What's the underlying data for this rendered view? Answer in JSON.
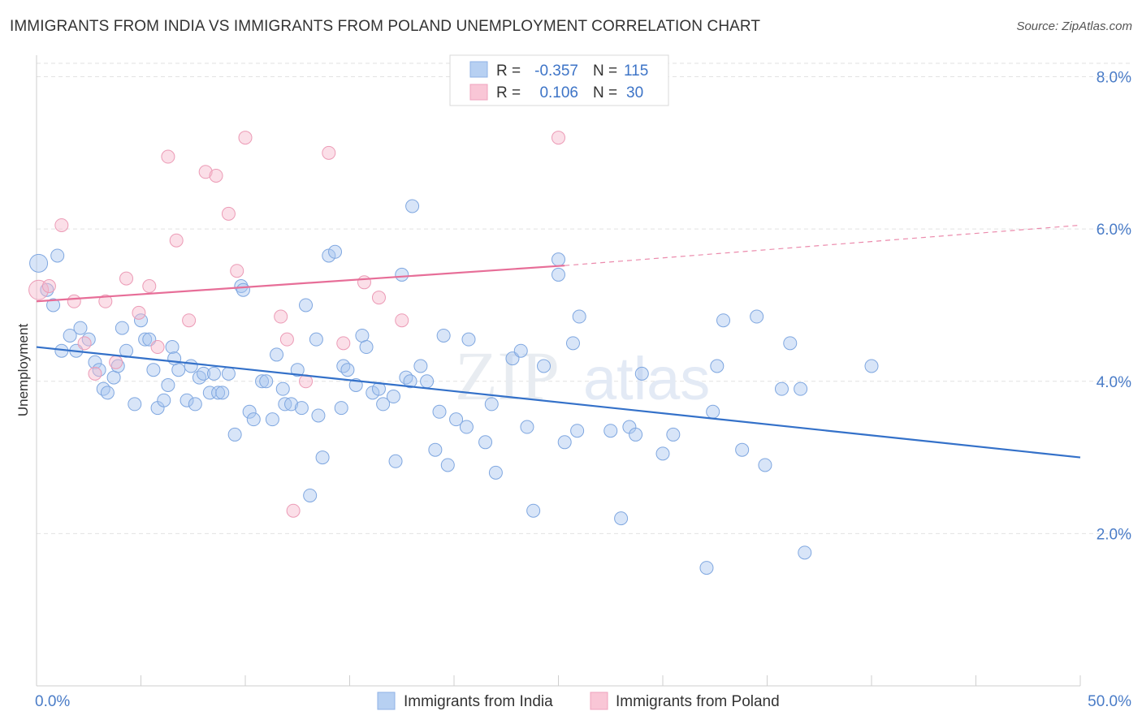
{
  "title": "IMMIGRANTS FROM INDIA VS IMMIGRANTS FROM POLAND UNEMPLOYMENT CORRELATION CHART",
  "source": "Source: ZipAtlas.com",
  "watermark": {
    "zip": "ZIP",
    "atlas": "atlas"
  },
  "legend": {
    "r_label": "R =",
    "n_label": "N =",
    "rows": [
      {
        "r": "-0.357",
        "n": "115"
      },
      {
        "r": "0.106",
        "n": "30"
      }
    ]
  },
  "chart_data": {
    "type": "scatter",
    "ylabel": "Unemployment",
    "xlim": [
      0,
      50
    ],
    "ylim": [
      0,
      8.4
    ],
    "x_tick_labels": [
      "0.0%",
      "50.0%"
    ],
    "y_ticks": [
      2,
      4,
      6,
      8
    ],
    "y_tick_labels": [
      "2.0%",
      "4.0%",
      "6.0%",
      "8.0%"
    ],
    "grid": true,
    "legend_position": "top-center",
    "series": [
      {
        "name": "Immigrants from India",
        "color": "#a8c6ef",
        "line_color": "#3471c9",
        "trend": {
          "x": [
            0,
            50
          ],
          "y": [
            4.45,
            3.0
          ]
        },
        "points": [
          [
            0.1,
            5.55
          ],
          [
            1.0,
            5.65
          ],
          [
            0.5,
            5.2
          ],
          [
            0.8,
            5.0
          ],
          [
            1.2,
            4.4
          ],
          [
            1.6,
            4.6
          ],
          [
            1.9,
            4.4
          ],
          [
            2.1,
            4.7
          ],
          [
            2.5,
            4.55
          ],
          [
            2.8,
            4.25
          ],
          [
            3.0,
            4.15
          ],
          [
            3.2,
            3.9
          ],
          [
            3.4,
            3.85
          ],
          [
            3.7,
            4.05
          ],
          [
            3.9,
            4.2
          ],
          [
            4.1,
            4.7
          ],
          [
            4.3,
            4.4
          ],
          [
            4.7,
            3.7
          ],
          [
            5.0,
            4.8
          ],
          [
            5.2,
            4.55
          ],
          [
            5.4,
            4.55
          ],
          [
            5.6,
            4.15
          ],
          [
            5.8,
            3.65
          ],
          [
            6.1,
            3.75
          ],
          [
            6.3,
            3.95
          ],
          [
            6.5,
            4.45
          ],
          [
            6.6,
            4.3
          ],
          [
            6.8,
            4.15
          ],
          [
            7.2,
            3.75
          ],
          [
            7.4,
            4.2
          ],
          [
            7.6,
            3.7
          ],
          [
            7.8,
            4.05
          ],
          [
            8.0,
            4.1
          ],
          [
            8.3,
            3.85
          ],
          [
            8.5,
            4.1
          ],
          [
            8.7,
            3.85
          ],
          [
            8.9,
            3.85
          ],
          [
            9.2,
            4.1
          ],
          [
            9.5,
            3.3
          ],
          [
            9.8,
            5.25
          ],
          [
            9.9,
            5.2
          ],
          [
            10.2,
            3.6
          ],
          [
            10.4,
            3.5
          ],
          [
            10.8,
            4.0
          ],
          [
            11.0,
            4.0
          ],
          [
            11.3,
            3.5
          ],
          [
            11.5,
            4.35
          ],
          [
            11.8,
            3.9
          ],
          [
            11.9,
            3.7
          ],
          [
            12.2,
            3.7
          ],
          [
            12.5,
            4.15
          ],
          [
            12.7,
            3.65
          ],
          [
            12.9,
            5.0
          ],
          [
            13.1,
            2.5
          ],
          [
            13.4,
            4.55
          ],
          [
            13.5,
            3.55
          ],
          [
            13.7,
            3.0
          ],
          [
            14.0,
            5.65
          ],
          [
            14.3,
            5.7
          ],
          [
            14.6,
            3.65
          ],
          [
            14.7,
            4.2
          ],
          [
            14.9,
            4.15
          ],
          [
            15.3,
            3.95
          ],
          [
            15.6,
            4.6
          ],
          [
            15.8,
            4.45
          ],
          [
            16.1,
            3.85
          ],
          [
            16.4,
            3.9
          ],
          [
            16.6,
            3.7
          ],
          [
            17.1,
            3.8
          ],
          [
            17.2,
            2.95
          ],
          [
            17.5,
            5.4
          ],
          [
            17.7,
            4.05
          ],
          [
            17.9,
            4.0
          ],
          [
            18.0,
            6.3
          ],
          [
            18.4,
            4.2
          ],
          [
            18.7,
            4.0
          ],
          [
            19.1,
            3.1
          ],
          [
            19.3,
            3.6
          ],
          [
            19.5,
            4.6
          ],
          [
            19.7,
            2.9
          ],
          [
            20.1,
            3.5
          ],
          [
            20.6,
            3.4
          ],
          [
            20.7,
            4.55
          ],
          [
            21.5,
            3.2
          ],
          [
            21.8,
            3.7
          ],
          [
            22.0,
            2.8
          ],
          [
            22.8,
            4.3
          ],
          [
            23.2,
            4.4
          ],
          [
            23.5,
            3.4
          ],
          [
            23.8,
            2.3
          ],
          [
            24.3,
            4.2
          ],
          [
            25.0,
            5.6
          ],
          [
            25.3,
            3.2
          ],
          [
            25.7,
            4.5
          ],
          [
            25.9,
            3.35
          ],
          [
            25.0,
            5.4
          ],
          [
            26.0,
            4.85
          ],
          [
            27.5,
            3.35
          ],
          [
            28.0,
            2.2
          ],
          [
            28.4,
            3.4
          ],
          [
            28.7,
            3.3
          ],
          [
            29.0,
            4.1
          ],
          [
            30.0,
            3.05
          ],
          [
            30.5,
            3.3
          ],
          [
            32.1,
            1.55
          ],
          [
            32.4,
            3.6
          ],
          [
            32.6,
            4.2
          ],
          [
            32.9,
            4.8
          ],
          [
            33.8,
            3.1
          ],
          [
            34.5,
            4.85
          ],
          [
            34.9,
            2.9
          ],
          [
            35.7,
            3.9
          ],
          [
            36.1,
            4.5
          ],
          [
            36.6,
            3.9
          ],
          [
            36.8,
            1.75
          ],
          [
            40.0,
            4.2
          ]
        ]
      },
      {
        "name": "Immigrants from Poland",
        "color": "#f7b9cc",
        "line_color": "#e76e98",
        "trend": {
          "x": [
            0,
            25.3
          ],
          "y": [
            5.05,
            5.52
          ]
        },
        "trend_dashed": {
          "x": [
            25.3,
            50
          ],
          "y": [
            5.52,
            6.05
          ]
        },
        "points": [
          [
            0.1,
            5.2
          ],
          [
            0.6,
            5.25
          ],
          [
            1.2,
            6.05
          ],
          [
            1.8,
            5.05
          ],
          [
            2.3,
            4.5
          ],
          [
            2.8,
            4.1
          ],
          [
            3.3,
            5.05
          ],
          [
            3.8,
            4.25
          ],
          [
            4.3,
            5.35
          ],
          [
            4.9,
            4.9
          ],
          [
            5.4,
            5.25
          ],
          [
            5.8,
            4.45
          ],
          [
            6.3,
            6.95
          ],
          [
            6.7,
            5.85
          ],
          [
            7.3,
            4.8
          ],
          [
            8.1,
            6.75
          ],
          [
            8.6,
            6.7
          ],
          [
            9.2,
            6.2
          ],
          [
            9.6,
            5.45
          ],
          [
            10.0,
            7.2
          ],
          [
            11.7,
            4.85
          ],
          [
            12.0,
            4.55
          ],
          [
            12.3,
            2.3
          ],
          [
            12.9,
            4.0
          ],
          [
            14.0,
            7.0
          ],
          [
            14.7,
            4.5
          ],
          [
            15.7,
            5.3
          ],
          [
            16.4,
            5.1
          ],
          [
            17.5,
            4.8
          ],
          [
            25.0,
            7.2
          ]
        ]
      }
    ]
  }
}
